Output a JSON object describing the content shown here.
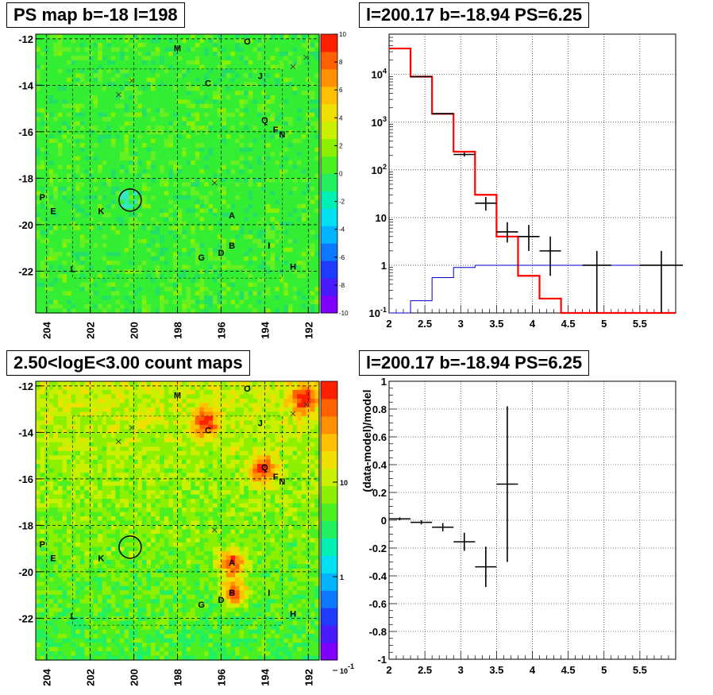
{
  "titles": {
    "top_left": "PS map b=-18 l=198",
    "top_right": "l=200.17 b=-18.94 PS=6.25",
    "bottom_left": "2.50<logE<3.00 count maps",
    "bottom_right": "l=200.17 b=-18.94 PS=6.25"
  },
  "chart_data": [
    {
      "id": "ps-map",
      "type": "heatmap",
      "title": "PS map b=-18 l=198",
      "xlabel": "",
      "ylabel": "",
      "x_ticks": [
        "204",
        "202",
        "200",
        "198",
        "196",
        "194",
        "192"
      ],
      "y_ticks": [
        "-12",
        "-14",
        "-16",
        "-18",
        "-20",
        "-22"
      ],
      "xlim": [
        204.5,
        191.5
      ],
      "ylim": [
        -23.8,
        -11.8
      ],
      "colorbar": {
        "scale": "linear",
        "range": [
          -10,
          10
        ],
        "ticks": [
          "10",
          "8",
          "6",
          "4",
          "2",
          "0",
          "-2",
          "-4",
          "-6",
          "-8",
          "-10"
        ]
      },
      "dominant_color": "#33ee33",
      "source_labels": [
        {
          "text": "M",
          "l": 198.0,
          "b": -12.4
        },
        {
          "text": "O",
          "l": 194.8,
          "b": -12.1
        },
        {
          "text": "J",
          "l": 194.2,
          "b": -13.6
        },
        {
          "text": "C",
          "l": 196.6,
          "b": -13.9
        },
        {
          "text": "Q",
          "l": 194.0,
          "b": -15.5
        },
        {
          "text": "F",
          "l": 193.5,
          "b": -15.9
        },
        {
          "text": "N",
          "l": 193.2,
          "b": -16.1
        },
        {
          "text": "P",
          "l": 204.2,
          "b": -18.8
        },
        {
          "text": "E",
          "l": 203.7,
          "b": -19.4
        },
        {
          "text": "K",
          "l": 201.5,
          "b": -19.4
        },
        {
          "text": "A",
          "l": 195.5,
          "b": -19.6
        },
        {
          "text": "B",
          "l": 195.5,
          "b": -20.9
        },
        {
          "text": "I",
          "l": 193.8,
          "b": -20.9
        },
        {
          "text": "D",
          "l": 196.0,
          "b": -21.2
        },
        {
          "text": "G",
          "l": 196.9,
          "b": -21.4
        },
        {
          "text": "L",
          "l": 202.8,
          "b": -21.9
        },
        {
          "text": "H",
          "l": 192.7,
          "b": -21.8
        }
      ],
      "crosses": [
        {
          "l": 200.1,
          "b": -13.8
        },
        {
          "l": 200.7,
          "b": -14.4
        },
        {
          "l": 192.7,
          "b": -13.2
        },
        {
          "l": 192.1,
          "b": -12.8
        },
        {
          "l": 196.3,
          "b": -18.2
        }
      ],
      "circle": {
        "l": 200.17,
        "b": -18.94
      }
    },
    {
      "id": "spectrum",
      "type": "line",
      "title": "l=200.17 b=-18.94 PS=6.25",
      "xlabel": "",
      "ylabel": "",
      "xlim": [
        2,
        6
      ],
      "ylim": [
        0.1,
        70000
      ],
      "yscale": "log",
      "grid": true,
      "x_ticks": [
        "2",
        "2.5",
        "3",
        "3.5",
        "4",
        "4.5",
        "5",
        "5.5"
      ],
      "y_ticks": [
        "10^-1",
        "1",
        "10",
        "10^2",
        "10^3",
        "10^4"
      ],
      "series": [
        {
          "color": "#ff0000",
          "step": true,
          "edges": [
            2,
            2.3,
            2.6,
            2.9,
            3.2,
            3.5,
            3.8,
            4.1,
            4.4,
            4.7,
            5.0,
            5.5,
            6.0
          ],
          "values": [
            35000,
            9000,
            1500,
            240,
            30,
            4,
            0.6,
            0.2,
            0.1,
            0.1,
            0.1,
            0.1
          ]
        },
        {
          "color": "#0000cc",
          "step": true,
          "edges": [
            2,
            2.3,
            2.6,
            2.9,
            3.2,
            3.5,
            3.8,
            4.1,
            4.4,
            4.7,
            5.0,
            5.5,
            6.0
          ],
          "values": [
            0.1,
            0.18,
            0.55,
            0.9,
            1.0,
            1.0,
            1.0,
            1.0,
            1.0,
            1.0,
            1.0,
            1.0
          ]
        },
        {
          "color": "#000000",
          "points": true,
          "x": [
            2.45,
            2.75,
            3.05,
            3.35,
            3.65,
            3.95,
            4.25,
            4.9,
            5.8
          ],
          "y": [
            9000,
            1500,
            210,
            20,
            5,
            4,
            2,
            1,
            1
          ],
          "xerr": [
            0.15,
            0.15,
            0.15,
            0.15,
            0.15,
            0.15,
            0.15,
            0.2,
            0.3
          ],
          "ylo": [
            8800,
            1450,
            190,
            14,
            3,
            2,
            0.6,
            0.05,
            0.05
          ],
          "yhi": [
            9200,
            1550,
            230,
            27,
            8,
            7,
            4,
            2,
            2
          ]
        }
      ]
    },
    {
      "id": "count-map",
      "type": "heatmap",
      "title": "2.50<logE<3.00 count maps",
      "xlabel": "",
      "ylabel": "",
      "x_ticks": [
        "204",
        "202",
        "200",
        "198",
        "196",
        "194",
        "192"
      ],
      "y_ticks": [
        "-12",
        "-14",
        "-16",
        "-18",
        "-20",
        "-22"
      ],
      "xlim": [
        204.5,
        191.5
      ],
      "ylim": [
        -23.8,
        -11.8
      ],
      "colorbar": {
        "scale": "log",
        "ticks": [
          "10",
          "1",
          "10^-1"
        ]
      },
      "hotspots": [
        {
          "name": "C",
          "l": 196.7,
          "b": -13.6
        },
        {
          "name": "A",
          "l": 195.5,
          "b": -19.6
        },
        {
          "name": "B",
          "l": 195.4,
          "b": -20.9
        },
        {
          "name": "Q",
          "l": 194.1,
          "b": -15.6
        },
        {
          "name": "corner",
          "l": 192.2,
          "b": -12.6
        }
      ]
    },
    {
      "id": "residuals",
      "type": "scatter",
      "title": "l=200.17 b=-18.94 PS=6.25",
      "xlabel": "",
      "ylabel": "(data-model)/model",
      "xlim": [
        2,
        6
      ],
      "ylim": [
        -1,
        1
      ],
      "grid": true,
      "x_ticks": [
        "2",
        "2.5",
        "3",
        "3.5",
        "4",
        "4.5",
        "5",
        "5.5"
      ],
      "y_ticks": [
        "1",
        "0.8",
        "0.6",
        "0.4",
        "0.2",
        "0",
        "-0.2",
        "-0.4",
        "-0.6",
        "-0.8",
        "-1"
      ],
      "series": [
        {
          "color": "#000000",
          "x": [
            2.15,
            2.45,
            2.75,
            3.05,
            3.35,
            3.65
          ],
          "y": [
            0.01,
            -0.015,
            -0.05,
            -0.155,
            -0.335,
            0.26
          ],
          "xerr": [
            0.15,
            0.15,
            0.15,
            0.15,
            0.15,
            0.15
          ],
          "ylo": [
            0.0,
            -0.03,
            -0.08,
            -0.22,
            -0.48,
            -0.3
          ],
          "yhi": [
            0.02,
            0.0,
            -0.02,
            -0.09,
            -0.19,
            0.82
          ]
        }
      ]
    }
  ]
}
